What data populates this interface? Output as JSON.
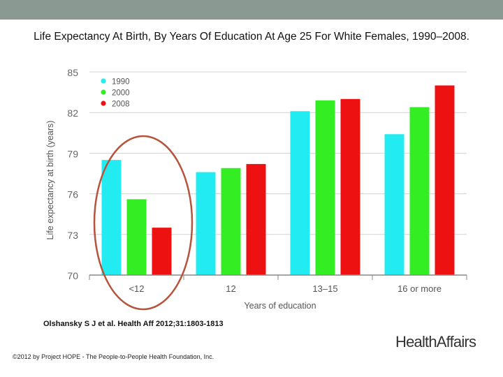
{
  "slide": {
    "title": "Life Expectancy At Birth, By Years Of Education At Age 25 For White Females, 1990–2008.",
    "citation": "Olshansky S J et al. Health Aff 2012;31:1803-1813",
    "copyright": "©2012 by Project HOPE - The People-to-People Health Foundation, Inc.",
    "logo": "HealthAffairs"
  },
  "chart_data": {
    "type": "bar",
    "title": "",
    "xlabel": "Years of education",
    "ylabel": "Life expectancy at birth (years)",
    "categories": [
      "<12",
      "12",
      "13–15",
      "16 or more"
    ],
    "series": [
      {
        "name": "1990",
        "color": "#22ecf2",
        "values": [
          78.5,
          77.6,
          82.1,
          80.4
        ]
      },
      {
        "name": "2000",
        "color": "#33ee22",
        "values": [
          75.6,
          77.9,
          82.9,
          82.4
        ]
      },
      {
        "name": "2008",
        "color": "#ee1111",
        "values": [
          73.5,
          78.2,
          83.0,
          84.0
        ]
      }
    ],
    "ylim": [
      70,
      85
    ],
    "yticks": [
      70,
      73,
      76,
      79,
      82,
      85
    ],
    "grid": true,
    "legend": "top-left",
    "annotation": {
      "shape": "ellipse",
      "target_category": "<12",
      "color": "#b5533c"
    }
  }
}
